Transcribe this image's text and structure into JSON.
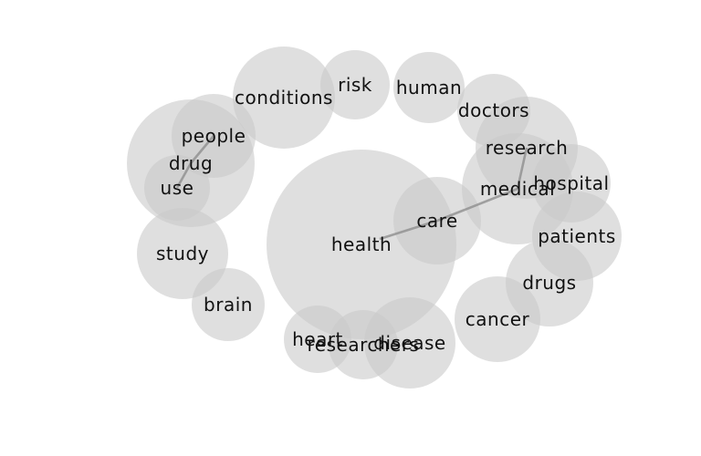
{
  "colors": {
    "bubble": "#c9c9c9",
    "link": "#8f8f8f",
    "text": "#111111",
    "background": "#ffffff"
  },
  "words": [
    {
      "id": "conditions",
      "label": "conditions"
    },
    {
      "id": "risk",
      "label": "risk"
    },
    {
      "id": "human",
      "label": "human"
    },
    {
      "id": "doctors",
      "label": "doctors"
    },
    {
      "id": "people",
      "label": "people"
    },
    {
      "id": "drug",
      "label": "drug"
    },
    {
      "id": "use",
      "label": "use"
    },
    {
      "id": "research",
      "label": "research"
    },
    {
      "id": "hospital",
      "label": "hospital"
    },
    {
      "id": "medical",
      "label": "medical"
    },
    {
      "id": "care",
      "label": "care"
    },
    {
      "id": "health",
      "label": "health"
    },
    {
      "id": "patients",
      "label": "patients"
    },
    {
      "id": "study",
      "label": "study"
    },
    {
      "id": "drugs",
      "label": "drugs"
    },
    {
      "id": "brain",
      "label": "brain"
    },
    {
      "id": "cancer",
      "label": "cancer"
    },
    {
      "id": "heart",
      "label": "heart"
    },
    {
      "id": "researchers",
      "label": "researchers"
    },
    {
      "id": "disease",
      "label": "disease"
    }
  ],
  "links": [
    {
      "from": "health",
      "to": "care"
    },
    {
      "from": "care",
      "to": "medical"
    },
    {
      "from": "medical",
      "to": "research"
    },
    {
      "from": "people",
      "to": "drug"
    },
    {
      "from": "drug",
      "to": "use"
    }
  ]
}
